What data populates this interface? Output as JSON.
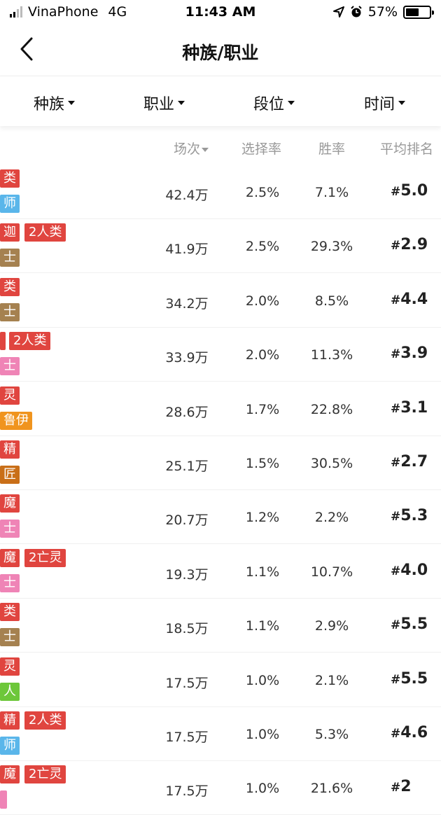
{
  "status": {
    "carrier": "VinaPhone",
    "network": "4G",
    "time": "11:43 AM",
    "battery": "57%",
    "battery_level": 0.57
  },
  "nav": {
    "title": "种族/职业"
  },
  "filters": [
    "种族",
    "职业",
    "段位",
    "时间"
  ],
  "columns": {
    "plays": "场次",
    "pick_rate": "选择率",
    "win_rate": "胜率",
    "avg_rank": "平均排名"
  },
  "colors": {
    "red": "#e0453f",
    "blue": "#5ab6ea",
    "brown": "#a58150",
    "pink": "#ef84b6",
    "orange": "#f0941e",
    "dark_orange": "#c96f18",
    "green": "#6dc73a"
  },
  "rows": [
    {
      "tag1": "类",
      "tag1_color": "red",
      "tag1b": "",
      "tag2": "师",
      "tag2_color": "blue",
      "plays": "42.4万",
      "pick": "2.5%",
      "win": "7.1%",
      "rank": "5.0"
    },
    {
      "tag1": "迦",
      "tag1_color": "red",
      "tag1b": "2人类",
      "tag2": "士",
      "tag2_color": "brown",
      "plays": "41.9万",
      "pick": "2.5%",
      "win": "29.3%",
      "rank": "2.9"
    },
    {
      "tag1": "类",
      "tag1_color": "red",
      "tag1b": "",
      "tag2": "士",
      "tag2_color": "brown",
      "plays": "34.2万",
      "pick": "2.0%",
      "win": "8.5%",
      "rank": "4.4"
    },
    {
      "tag1": "",
      "tag1_color": "red",
      "tag1b": "2人类",
      "tag2": "士",
      "tag2_color": "pink",
      "plays": "33.9万",
      "pick": "2.0%",
      "win": "11.3%",
      "rank": "3.9"
    },
    {
      "tag1": "灵",
      "tag1_color": "red",
      "tag1b": "",
      "tag2": "鲁伊",
      "tag2_color": "orange",
      "plays": "28.6万",
      "pick": "1.7%",
      "win": "22.8%",
      "rank": "3.1"
    },
    {
      "tag1": "精",
      "tag1_color": "red",
      "tag1b": "",
      "tag2": "匠",
      "tag2_color": "dark_orange",
      "plays": "25.1万",
      "pick": "1.5%",
      "win": "30.5%",
      "rank": "2.7"
    },
    {
      "tag1": "魔",
      "tag1_color": "red",
      "tag1b": "",
      "tag2": "士",
      "tag2_color": "pink",
      "plays": "20.7万",
      "pick": "1.2%",
      "win": "2.2%",
      "rank": "5.3"
    },
    {
      "tag1": "魔",
      "tag1_color": "red",
      "tag1b": "2亡灵",
      "tag2": "士",
      "tag2_color": "pink",
      "plays": "19.3万",
      "pick": "1.1%",
      "win": "10.7%",
      "rank": "4.0"
    },
    {
      "tag1": "类",
      "tag1_color": "red",
      "tag1b": "",
      "tag2": "士",
      "tag2_color": "brown",
      "plays": "18.5万",
      "pick": "1.1%",
      "win": "2.9%",
      "rank": "5.5"
    },
    {
      "tag1": "灵",
      "tag1_color": "red",
      "tag1b": "",
      "tag2": "人",
      "tag2_color": "green",
      "plays": "17.5万",
      "pick": "1.0%",
      "win": "2.1%",
      "rank": "5.5"
    },
    {
      "tag1": "精",
      "tag1_color": "red",
      "tag1b": "2人类",
      "tag2": "师",
      "tag2_color": "blue",
      "plays": "17.5万",
      "pick": "1.0%",
      "win": "5.3%",
      "rank": "4.6"
    },
    {
      "tag1": "魔",
      "tag1_color": "red",
      "tag1b": "2亡灵",
      "tag2": "",
      "tag2_color": "pink",
      "plays": "17.5万",
      "pick": "1.0%",
      "win": "21.6%",
      "rank": "2"
    }
  ]
}
